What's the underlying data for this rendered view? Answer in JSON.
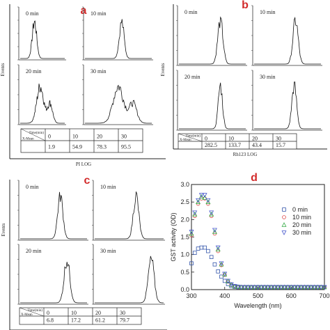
{
  "chart_data": [
    {
      "type": "histogram",
      "panel_label": "a",
      "xlabel": "PI LOG",
      "ylabel": "Events",
      "subplots": [
        {
          "label": "0 min",
          "peak_x": 0.32,
          "peak_w": 0.14
        },
        {
          "label": "10 min",
          "peak_x": 0.55,
          "peak_w": 0.1
        },
        {
          "label": "20 min",
          "peak_x": 0.45,
          "peak_w": 0.22
        },
        {
          "label": "30 min",
          "peak_x": 0.5,
          "peak_w": 0.22
        }
      ],
      "table": {
        "header": [
          "Time(min)",
          "0",
          "10",
          "20",
          "30"
        ],
        "row_label": "X-Mean",
        "values": [
          "1.9",
          "54.9",
          "78.3",
          "95.5"
        ]
      }
    },
    {
      "type": "histogram",
      "panel_label": "b",
      "xlabel": "Rh123 LOG",
      "ylabel": "Events",
      "subplots": [
        {
          "label": "0 min",
          "peak_x": 0.62,
          "peak_w": 0.11
        },
        {
          "label": "10 min",
          "peak_x": 0.62,
          "peak_w": 0.11
        },
        {
          "label": "20 min",
          "peak_x": 0.62,
          "peak_w": 0.09
        },
        {
          "label": "30 min",
          "peak_x": 0.6,
          "peak_w": 0.1
        }
      ],
      "table": {
        "header": [
          "Time(min)",
          "0",
          "10",
          "20",
          "30"
        ],
        "row_label": "X-Mean",
        "values": [
          "282.5",
          "133.7",
          "43.4",
          "15.7"
        ]
      }
    },
    {
      "type": "histogram",
      "panel_label": "c",
      "xlabel": "",
      "ylabel": "Events",
      "subplots": [
        {
          "label": "0 min",
          "peak_x": 0.6,
          "peak_w": 0.11
        },
        {
          "label": "10 min",
          "peak_x": 0.6,
          "peak_w": 0.11
        },
        {
          "label": "20 min",
          "peak_x": 0.7,
          "peak_w": 0.12
        },
        {
          "label": "30 min",
          "peak_x": 0.82,
          "peak_w": 0.12
        }
      ],
      "table": {
        "header": [
          "Time(min)",
          "0",
          "10",
          "20",
          "30"
        ],
        "row_label": "X-Mean",
        "values": [
          "6.8",
          "17.2",
          "61.2",
          "79.7"
        ]
      }
    },
    {
      "type": "scatter",
      "panel_label": "d",
      "xlabel": "Wavelength (nm)",
      "ylabel": "GST activity (OD)",
      "xlim": [
        300,
        700
      ],
      "ylim": [
        0,
        3.0
      ],
      "xticks": [
        300,
        400,
        500,
        600,
        700
      ],
      "yticks": [
        0.0,
        0.5,
        1.0,
        1.5,
        2.0,
        2.5,
        3.0
      ],
      "x": [
        300,
        310,
        320,
        330,
        340,
        350,
        360,
        370,
        380,
        390,
        400,
        410,
        420,
        430,
        440,
        450,
        460,
        470,
        480,
        490,
        500,
        510,
        520,
        530,
        540,
        550,
        560,
        570,
        580,
        590,
        600,
        610,
        620,
        630,
        640,
        650,
        660,
        670,
        680,
        690,
        700
      ],
      "legend_position": "top-right",
      "series": [
        {
          "name": "0 min",
          "marker": "square",
          "color": "#3355aa",
          "values": [
            0.75,
            1.05,
            1.17,
            1.2,
            1.2,
            1.1,
            0.93,
            0.72,
            0.52,
            0.37,
            0.25,
            0.16,
            0.1,
            0.08,
            0.07,
            0.07,
            0.07,
            0.07,
            0.07,
            0.07,
            0.07,
            0.07,
            0.07,
            0.07,
            0.07,
            0.07,
            0.07,
            0.07,
            0.07,
            0.07,
            0.07,
            0.07,
            0.07,
            0.07,
            0.07,
            0.07,
            0.07,
            0.07,
            0.07,
            0.07,
            0.07
          ]
        },
        {
          "name": "10 min",
          "marker": "circle",
          "color": "#dd4444",
          "values": [
            1.55,
            2.1,
            2.45,
            2.6,
            2.6,
            2.45,
            2.1,
            1.6,
            1.1,
            0.7,
            0.42,
            0.23,
            0.13,
            0.09,
            0.07,
            0.07,
            0.07,
            0.07,
            0.07,
            0.07,
            0.07,
            0.07,
            0.07,
            0.07,
            0.07,
            0.07,
            0.07,
            0.07,
            0.07,
            0.07,
            0.07,
            0.07,
            0.07,
            0.07,
            0.07,
            0.07,
            0.07,
            0.07,
            0.07,
            0.07,
            0.07
          ]
        },
        {
          "name": "20 min",
          "marker": "triangle-up",
          "color": "#33aa44",
          "values": [
            1.6,
            2.15,
            2.5,
            2.65,
            2.62,
            2.5,
            2.15,
            1.65,
            1.15,
            0.72,
            0.43,
            0.24,
            0.14,
            0.09,
            0.08,
            0.07,
            0.07,
            0.07,
            0.07,
            0.07,
            0.07,
            0.07,
            0.07,
            0.07,
            0.07,
            0.07,
            0.07,
            0.07,
            0.07,
            0.07,
            0.07,
            0.07,
            0.07,
            0.07,
            0.07,
            0.07,
            0.07,
            0.07,
            0.07,
            0.07,
            0.07
          ]
        },
        {
          "name": "30 min",
          "marker": "triangle-down",
          "color": "#4455cc",
          "values": [
            1.65,
            2.2,
            2.55,
            2.7,
            2.7,
            2.55,
            2.2,
            1.7,
            1.2,
            0.75,
            0.45,
            0.25,
            0.15,
            0.1,
            0.08,
            0.07,
            0.07,
            0.07,
            0.07,
            0.07,
            0.07,
            0.07,
            0.07,
            0.07,
            0.07,
            0.07,
            0.07,
            0.07,
            0.07,
            0.07,
            0.07,
            0.07,
            0.07,
            0.07,
            0.07,
            0.07,
            0.07,
            0.07,
            0.07,
            0.07,
            0.07
          ]
        }
      ]
    }
  ]
}
